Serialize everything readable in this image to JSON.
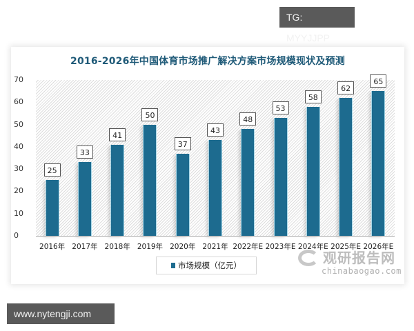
{
  "overlays": {
    "tg_tag": "TG: MYYJJPP",
    "url_tag": "www.nytengji.com"
  },
  "chart": {
    "title": "2016-2026年中国体育市场推广解决方案市场规模现状及预测",
    "legend_label": "市场规模（亿元）",
    "watermark_cn": "观研报告网",
    "watermark_en": "chinabaogao.com",
    "bar_color": "#1d6b8f",
    "title_color": "#1f5a78"
  },
  "chart_data": {
    "type": "bar",
    "title": "2016-2026年中国体育市场推广解决方案市场规模现状及预测",
    "xlabel": "",
    "ylabel": "",
    "ylim": [
      0,
      70
    ],
    "yticks": [
      0,
      10,
      20,
      30,
      40,
      50,
      60,
      70
    ],
    "grid": false,
    "legend_position": "bottom",
    "categories": [
      "2016年",
      "2017年",
      "2018年",
      "2019年",
      "2020年",
      "2021年",
      "2022年E",
      "2023年E",
      "2024年E",
      "2025年E",
      "2026年E"
    ],
    "series": [
      {
        "name": "市场规模（亿元）",
        "values": [
          25,
          33,
          41,
          50,
          37,
          43,
          48,
          53,
          58,
          62,
          65
        ]
      }
    ]
  }
}
